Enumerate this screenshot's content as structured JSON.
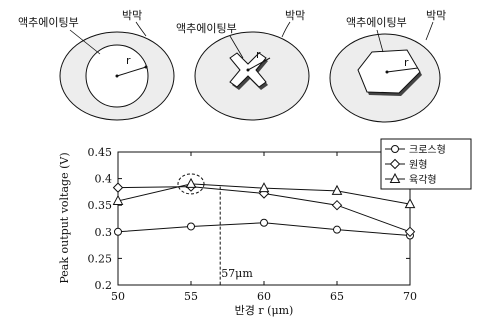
{
  "diagrams": [
    {
      "type": "cross",
      "etch_label": "액추에이팅부",
      "film_label": "박막",
      "r_label": "r"
    },
    {
      "type": "round",
      "etch_label": "액추에이팅부",
      "film_label": "박막",
      "r_label": "r"
    },
    {
      "type": "hexagon",
      "etch_label": "액추에이팅부",
      "film_label": "박막",
      "r_label": "r"
    }
  ],
  "chart_data": {
    "type": "line",
    "x": [
      50,
      55,
      60,
      65,
      70
    ],
    "xlabel": "반경 r (μm)",
    "ylabel": "Peak output voltage (V)",
    "xlim": [
      50,
      70
    ],
    "ylim": [
      0.2,
      0.45
    ],
    "xticks": [
      "50",
      "55",
      "60",
      "65",
      "70"
    ],
    "yticks": [
      "0.2",
      "0.25",
      "0.3",
      "0.35",
      "0.4",
      "0.45"
    ],
    "series": [
      {
        "name": "크로스형",
        "marker": "circle",
        "values": [
          0.3,
          0.31,
          0.317,
          0.304,
          0.293
        ]
      },
      {
        "name": "원형",
        "marker": "diamond",
        "values": [
          0.383,
          0.385,
          0.372,
          0.35,
          0.3
        ]
      },
      {
        "name": "육각형",
        "marker": "triangle",
        "values": [
          0.358,
          0.39,
          0.382,
          0.377,
          0.352
        ]
      }
    ],
    "vline": {
      "x": 57,
      "label": "57μm"
    },
    "highlight": {
      "x": 55,
      "y": 0.39
    },
    "legend_position": "top-right",
    "grid": false
  }
}
